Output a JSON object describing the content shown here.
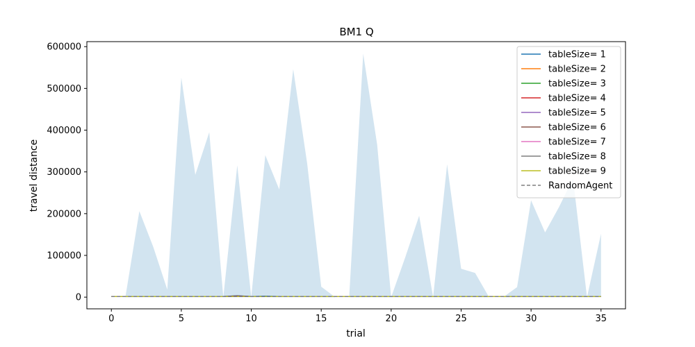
{
  "chart_data": {
    "type": "area",
    "title": "BM1  Q",
    "xlabel": "trial",
    "ylabel": "travel distance",
    "xlim": [
      -1.75,
      36.75
    ],
    "ylim": [
      -28000,
      612000
    ],
    "xticks": [
      0,
      5,
      10,
      15,
      20,
      25,
      30,
      35
    ],
    "yticks": [
      0,
      100000,
      200000,
      300000,
      400000,
      500000,
      600000
    ],
    "grid": false,
    "legend_position": "top-right",
    "x": [
      0,
      1,
      2,
      3,
      4,
      5,
      6,
      7,
      8,
      9,
      10,
      11,
      12,
      13,
      14,
      15,
      16,
      17,
      18,
      19,
      20,
      21,
      22,
      23,
      24,
      25,
      26,
      27,
      28,
      29,
      30,
      31,
      32,
      33,
      34,
      35
    ],
    "band": {
      "color": "#1f77b4",
      "opacity": 0.2,
      "upper": [
        0,
        0,
        206000,
        120000,
        18000,
        526000,
        293000,
        395000,
        0,
        316000,
        0,
        340000,
        258000,
        546000,
        320000,
        25000,
        0,
        0,
        583000,
        365000,
        0,
        95000,
        195000,
        0,
        318000,
        68000,
        58000,
        0,
        0,
        24000,
        232000,
        155000,
        216000,
        284000,
        0,
        152000
      ],
      "lower": [
        0,
        0,
        0,
        0,
        0,
        0,
        0,
        0,
        0,
        0,
        0,
        0,
        0,
        0,
        0,
        0,
        0,
        0,
        0,
        0,
        0,
        0,
        0,
        0,
        0,
        0,
        0,
        0,
        0,
        0,
        0,
        0,
        0,
        0,
        0,
        0
      ]
    },
    "series": [
      {
        "name": "tableSize= 1",
        "color": "#1f77b4",
        "dash": false,
        "values": [
          1500,
          1500,
          1500,
          1500,
          1500,
          1500,
          1500,
          1500,
          1500,
          3500,
          1500,
          2500,
          1500,
          1500,
          1500,
          1500,
          1500,
          1500,
          1500,
          1500,
          1500,
          1500,
          1500,
          1500,
          1500,
          1500,
          1500,
          1500,
          1500,
          1500,
          1500,
          1500,
          1500,
          1500,
          1500,
          1500
        ]
      },
      {
        "name": "tableSize= 2",
        "color": "#ff7f0e",
        "dash": false,
        "values": [
          1500,
          1500,
          1500,
          1500,
          1500,
          1500,
          1500,
          1500,
          1500,
          1500,
          1500,
          1500,
          1500,
          1500,
          1500,
          1500,
          1500,
          1500,
          1500,
          1500,
          1500,
          1500,
          1500,
          1500,
          1500,
          1500,
          1500,
          1500,
          1500,
          1500,
          1500,
          1500,
          1500,
          1500,
          1500,
          1500
        ]
      },
      {
        "name": "tableSize= 3",
        "color": "#2ca02c",
        "dash": false,
        "values": [
          1500,
          1500,
          1500,
          1500,
          1500,
          1500,
          1500,
          1500,
          1500,
          1500,
          1500,
          1500,
          1500,
          1500,
          1500,
          1500,
          1500,
          1500,
          1500,
          1500,
          1500,
          1500,
          1500,
          1500,
          1500,
          1500,
          1500,
          1500,
          1500,
          1500,
          1500,
          1500,
          1500,
          1500,
          1500,
          1500
        ]
      },
      {
        "name": "tableSize= 4",
        "color": "#d62728",
        "dash": false,
        "values": [
          1500,
          1500,
          1500,
          1500,
          1500,
          1500,
          1500,
          1500,
          1500,
          1500,
          1500,
          1500,
          1500,
          1500,
          1500,
          1500,
          1500,
          1500,
          1500,
          1500,
          1500,
          1500,
          1500,
          1500,
          1500,
          1500,
          1500,
          1500,
          1500,
          1500,
          1500,
          1500,
          1500,
          1500,
          1500,
          1500
        ]
      },
      {
        "name": "tableSize= 5",
        "color": "#9467bd",
        "dash": false,
        "values": [
          1500,
          1500,
          1500,
          1500,
          1500,
          1500,
          1500,
          1500,
          1500,
          1500,
          1500,
          1500,
          1500,
          1500,
          1500,
          1500,
          1500,
          1500,
          1500,
          1500,
          1500,
          1500,
          1500,
          1500,
          1500,
          1500,
          1500,
          1500,
          1500,
          1500,
          1500,
          1500,
          1500,
          1500,
          1500,
          1500
        ]
      },
      {
        "name": "tableSize= 6",
        "color": "#8c564b",
        "dash": false,
        "values": [
          1500,
          1500,
          1500,
          1500,
          1500,
          1500,
          1500,
          1500,
          1500,
          3000,
          1500,
          1500,
          1500,
          1500,
          1500,
          1500,
          1500,
          1500,
          1500,
          1500,
          1500,
          1500,
          1500,
          1500,
          1500,
          1500,
          1500,
          1500,
          1500,
          1500,
          1500,
          1500,
          1500,
          1500,
          1500,
          1500
        ]
      },
      {
        "name": "tableSize= 7",
        "color": "#e377c2",
        "dash": false,
        "values": [
          1500,
          1500,
          1500,
          1500,
          1500,
          1500,
          1500,
          1500,
          1500,
          1500,
          1500,
          1500,
          1500,
          1500,
          1500,
          1500,
          1500,
          1500,
          1500,
          1500,
          1500,
          1500,
          1500,
          1500,
          1500,
          1500,
          1500,
          1500,
          1500,
          1500,
          1500,
          1500,
          1500,
          1500,
          1500,
          1500
        ]
      },
      {
        "name": "tableSize= 8",
        "color": "#7f7f7f",
        "dash": false,
        "values": [
          1500,
          1500,
          1500,
          1500,
          1500,
          1500,
          1500,
          1500,
          1500,
          1500,
          1500,
          1500,
          1500,
          1500,
          1500,
          1500,
          1500,
          1500,
          1500,
          1500,
          1500,
          1500,
          1500,
          1500,
          1500,
          1500,
          1500,
          1500,
          1500,
          1500,
          1500,
          1500,
          1500,
          1500,
          1500,
          1500
        ]
      },
      {
        "name": "tableSize= 9",
        "color": "#bcbd22",
        "dash": false,
        "values": [
          1500,
          1500,
          1500,
          1500,
          1500,
          1500,
          1500,
          1500,
          1500,
          1500,
          1500,
          1500,
          1500,
          1500,
          1500,
          1500,
          1500,
          1500,
          1500,
          1500,
          1500,
          1500,
          1500,
          1500,
          1500,
          1500,
          1500,
          1500,
          1500,
          1500,
          1500,
          1500,
          1500,
          1500,
          1500,
          1500
        ]
      },
      {
        "name": "RandomAgent",
        "color": "#7f7f7f",
        "dash": true,
        "values": [
          1500,
          1500,
          1500,
          1500,
          1500,
          1500,
          1500,
          1500,
          1500,
          1500,
          1500,
          1500,
          1500,
          1500,
          1500,
          1500,
          1500,
          1500,
          1500,
          1500,
          1500,
          1500,
          1500,
          1500,
          1500,
          1500,
          1500,
          1500,
          1500,
          1500,
          1500,
          1500,
          1500,
          1500,
          1500,
          1500
        ]
      }
    ]
  }
}
